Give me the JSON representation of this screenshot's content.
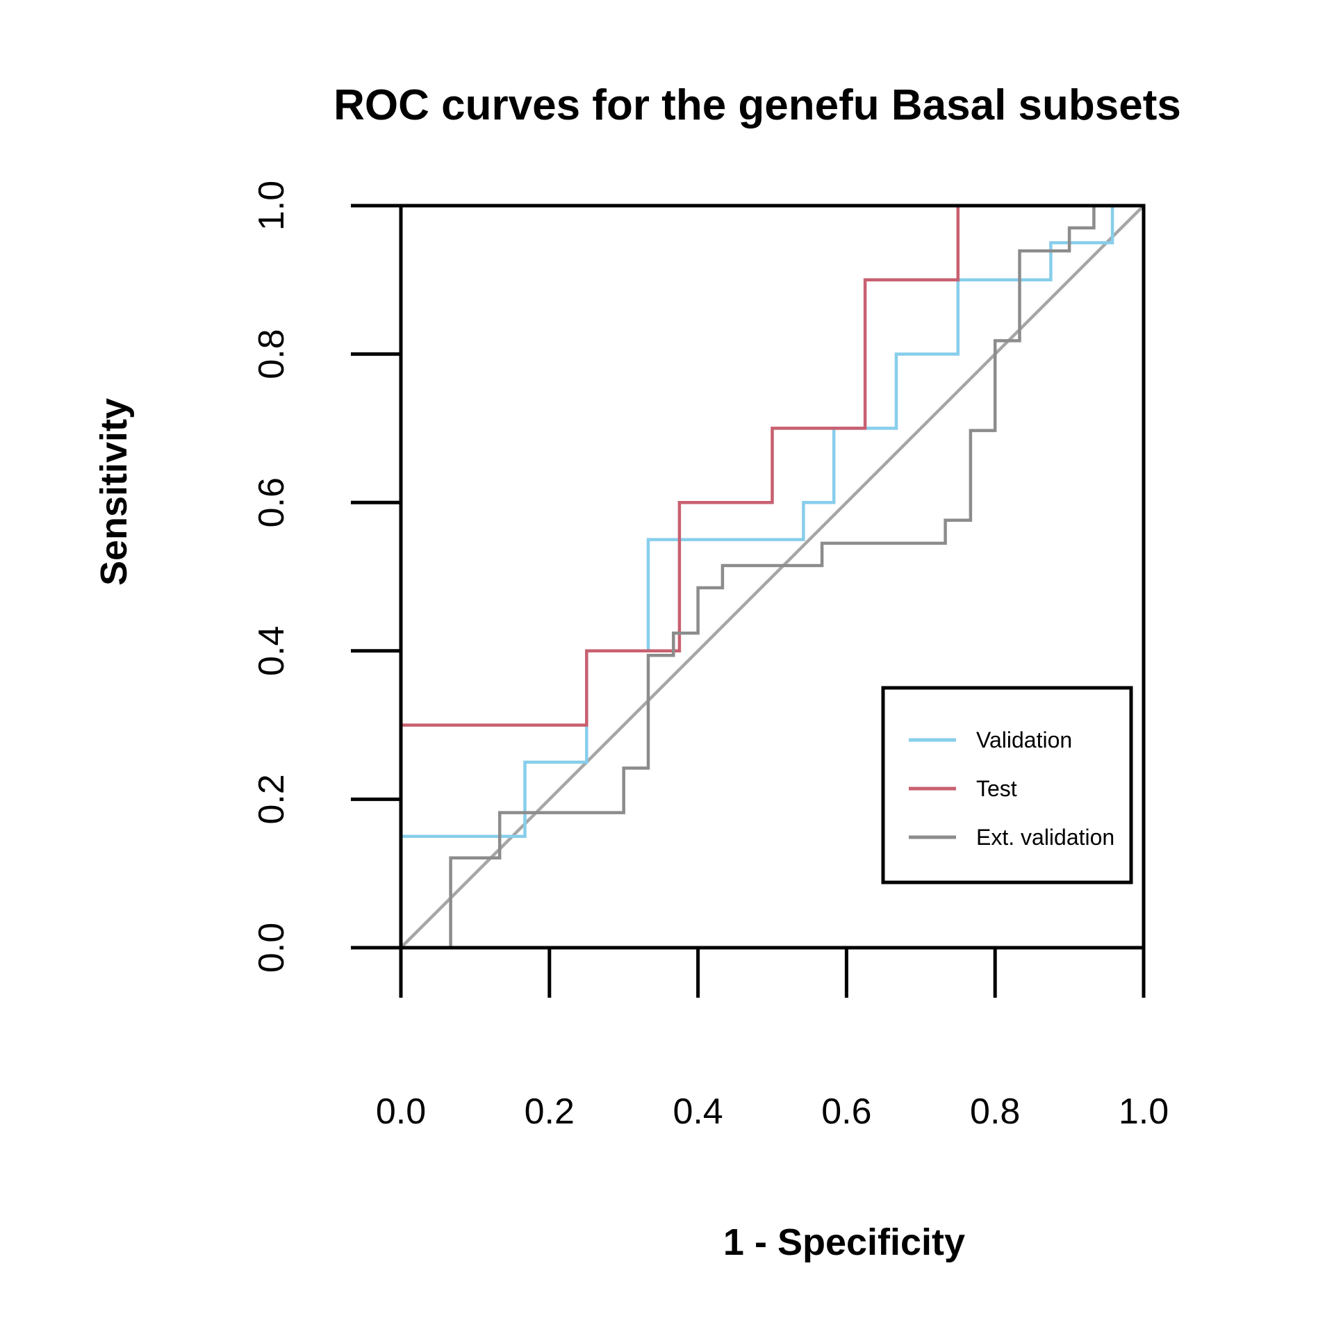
{
  "chart_data": {
    "type": "line",
    "title": "ROC curves for the genefu Basal subsets",
    "xlabel": "1 - Specificity",
    "ylabel": "Sensitivity",
    "xlim": [
      0,
      1
    ],
    "ylim": [
      0,
      1
    ],
    "x_ticks": [
      "0.0",
      "0.2",
      "0.4",
      "0.6",
      "0.8",
      "1.0"
    ],
    "y_ticks": [
      "0.0",
      "0.2",
      "0.4",
      "0.6",
      "0.8",
      "1.0"
    ],
    "grid": false,
    "legend_position": "bottom-right",
    "reference_line": {
      "from": [
        0,
        0
      ],
      "to": [
        1,
        1
      ],
      "color": "#a6a6a6"
    },
    "series": [
      {
        "name": "Validation",
        "color": "#87ceeb",
        "points": [
          [
            0,
            0
          ],
          [
            0,
            0.15
          ],
          [
            0.167,
            0.15
          ],
          [
            0.167,
            0.25
          ],
          [
            0.25,
            0.25
          ],
          [
            0.25,
            0.3
          ],
          [
            0.25,
            0.4
          ],
          [
            0.333,
            0.4
          ],
          [
            0.333,
            0.55
          ],
          [
            0.542,
            0.55
          ],
          [
            0.542,
            0.6
          ],
          [
            0.583,
            0.6
          ],
          [
            0.583,
            0.7
          ],
          [
            0.667,
            0.7
          ],
          [
            0.667,
            0.8
          ],
          [
            0.75,
            0.8
          ],
          [
            0.75,
            0.9
          ],
          [
            0.875,
            0.9
          ],
          [
            0.875,
            0.95
          ],
          [
            0.958,
            0.95
          ],
          [
            0.958,
            1
          ],
          [
            1,
            1
          ]
        ]
      },
      {
        "name": "Test",
        "color": "#c86070",
        "points": [
          [
            0,
            0
          ],
          [
            0,
            0.3
          ],
          [
            0.25,
            0.3
          ],
          [
            0.25,
            0.4
          ],
          [
            0.375,
            0.4
          ],
          [
            0.375,
            0.6
          ],
          [
            0.5,
            0.6
          ],
          [
            0.5,
            0.7
          ],
          [
            0.625,
            0.7
          ],
          [
            0.625,
            0.9
          ],
          [
            0.75,
            0.9
          ],
          [
            0.75,
            1
          ],
          [
            1,
            1
          ]
        ]
      },
      {
        "name": "Ext. validation",
        "color": "#8c8c8c",
        "points": [
          [
            0,
            0
          ],
          [
            0.067,
            0
          ],
          [
            0.067,
            0.121
          ],
          [
            0.133,
            0.121
          ],
          [
            0.133,
            0.182
          ],
          [
            0.3,
            0.182
          ],
          [
            0.3,
            0.242
          ],
          [
            0.333,
            0.242
          ],
          [
            0.333,
            0.394
          ],
          [
            0.367,
            0.394
          ],
          [
            0.367,
            0.424
          ],
          [
            0.4,
            0.424
          ],
          [
            0.4,
            0.485
          ],
          [
            0.433,
            0.485
          ],
          [
            0.433,
            0.515
          ],
          [
            0.567,
            0.515
          ],
          [
            0.567,
            0.545
          ],
          [
            0.733,
            0.545
          ],
          [
            0.733,
            0.576
          ],
          [
            0.767,
            0.576
          ],
          [
            0.767,
            0.697
          ],
          [
            0.8,
            0.697
          ],
          [
            0.8,
            0.818
          ],
          [
            0.833,
            0.818
          ],
          [
            0.833,
            0.939
          ],
          [
            0.9,
            0.939
          ],
          [
            0.9,
            0.97
          ],
          [
            0.933,
            0.97
          ],
          [
            0.933,
            1
          ],
          [
            1,
            1
          ]
        ]
      }
    ]
  }
}
